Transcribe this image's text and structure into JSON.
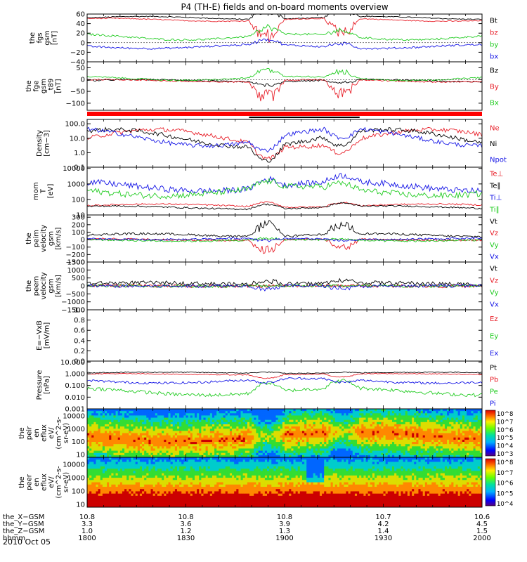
{
  "title": "P4 (TH-E) fields and on-board moments overview",
  "date_label": "2010 Oct 05",
  "colors": {
    "black": "#000000",
    "red": "#e8202a",
    "green": "#22cc22",
    "blue": "#1515e6",
    "bar_red": "#ff0000"
  },
  "chart_data": [
    {
      "type": "line",
      "panel": "fgs",
      "ylabel": [
        "the",
        "fgs",
        "gsm",
        "[nT]"
      ],
      "ylim": [
        -40,
        60
      ],
      "yticks": [
        "60",
        "40",
        "20",
        "0",
        "−20",
        "−40"
      ],
      "ytick_values": [
        60,
        40,
        20,
        0,
        -20,
        -40
      ],
      "series": [
        {
          "name": "Bt",
          "color": "black",
          "base": 52,
          "amp": 3,
          "noise": 1,
          "dist": 20
        },
        {
          "name": "bz",
          "color": "red",
          "base": 48,
          "amp": 3,
          "noise": 1,
          "dist": -35
        },
        {
          "name": "by",
          "color": "green",
          "base": 12,
          "amp": 6,
          "noise": 2,
          "dist": 15
        },
        {
          "name": "bx",
          "color": "blue",
          "base": -8,
          "amp": 4,
          "noise": 2,
          "dist": 10
        }
      ]
    },
    {
      "type": "line",
      "panel": "fge",
      "ylabel": [
        "the",
        "fge",
        "gsm",
        "_t89",
        "[nT]"
      ],
      "ylim": [
        -130,
        75
      ],
      "yticks": [
        "50",
        "0",
        "−50",
        "−100"
      ],
      "ytick_values": [
        50,
        0,
        -50,
        -100
      ],
      "series": [
        {
          "name": "Bz",
          "color": "black",
          "base": -5,
          "amp": 5,
          "noise": 3,
          "dist": -15
        },
        {
          "name": "By",
          "color": "red",
          "base": -5,
          "amp": 5,
          "noise": 3,
          "dist": -70
        },
        {
          "name": "Bx",
          "color": "green",
          "base": 5,
          "amp": 8,
          "noise": 3,
          "dist": 30
        }
      ]
    },
    {
      "type": "line",
      "panel": "density",
      "log": true,
      "ylabel": [
        "Density",
        "[cm−3]"
      ],
      "ylim": [
        0.1,
        200
      ],
      "yticks": [
        "100.0",
        "10.0",
        "1.0",
        "0.1"
      ],
      "ytick_values": [
        100,
        10,
        1,
        0.1
      ],
      "series": [
        {
          "name": "Ne",
          "color": "red",
          "base": 10,
          "amp": 0.6,
          "noise": 0.15,
          "dist": -0.9
        },
        {
          "name": "Ni",
          "color": "black",
          "base": 10,
          "amp": 0.6,
          "noise": 0.15,
          "dist": -1.0
        },
        {
          "name": "Npot",
          "color": "blue",
          "base": 12,
          "amp": 0.6,
          "noise": 0.15,
          "dist": -0.8
        }
      ]
    },
    {
      "type": "line",
      "panel": "temperature",
      "log": true,
      "ylabel": [
        "mom",
        "T",
        "[eV]"
      ],
      "ylim": [
        10,
        12000
      ],
      "yticks": [
        "10000",
        "1000",
        "100",
        "10"
      ],
      "ytick_values": [
        10000,
        1000,
        100,
        10
      ],
      "series": [
        {
          "name": "Te⊥",
          "color": "red",
          "base": 40,
          "amp": 0.1,
          "noise": 0.05,
          "dist": 0.3
        },
        {
          "name": "Te∥",
          "color": "black",
          "base": 30,
          "amp": 0.1,
          "noise": 0.05,
          "dist": 0.3
        },
        {
          "name": "Ti⊥",
          "color": "blue",
          "base": 700,
          "amp": 0.3,
          "noise": 0.2,
          "dist": 0.5
        },
        {
          "name": "Ti∥",
          "color": "green",
          "base": 350,
          "amp": 0.3,
          "noise": 0.2,
          "dist": 0.4
        }
      ]
    },
    {
      "type": "line",
      "panel": "peim",
      "ylabel": [
        "the",
        "peim",
        "velocity",
        "gsm",
        "[km/s]"
      ],
      "ylim": [
        -300,
        330
      ],
      "yticks": [
        "300",
        "200",
        "100",
        "0",
        "−100",
        "−200",
        "−300"
      ],
      "ytick_values": [
        300,
        200,
        100,
        0,
        -100,
        -200,
        -300
      ],
      "series": [
        {
          "name": "Vt",
          "color": "black",
          "base": 60,
          "amp": 20,
          "noise": 15,
          "dist": 150
        },
        {
          "name": "Vz",
          "color": "red",
          "base": 0,
          "amp": 10,
          "noise": 12,
          "dist": -150
        },
        {
          "name": "Vy",
          "color": "green",
          "base": -10,
          "amp": 10,
          "noise": 12,
          "dist": 20
        },
        {
          "name": "Vx",
          "color": "blue",
          "base": 10,
          "amp": 10,
          "noise": 12,
          "dist": -30
        }
      ]
    },
    {
      "type": "line",
      "panel": "peem",
      "ylabel": [
        "the",
        "peem",
        "velocity",
        "gsm",
        "[km/s]"
      ],
      "ylim": [
        -1500,
        1500
      ],
      "yticks": [
        "1500",
        "1000",
        "500",
        "0",
        "−500",
        "−1000",
        "−1500"
      ],
      "ytick_values": [
        1500,
        1000,
        500,
        0,
        -500,
        -1000,
        -1500
      ],
      "series": [
        {
          "name": "Vt",
          "color": "black",
          "base": 150,
          "amp": 50,
          "noise": 120,
          "dist": 200
        },
        {
          "name": "Vz",
          "color": "red",
          "base": 0,
          "amp": 20,
          "noise": 100,
          "dist": 0
        },
        {
          "name": "Vy",
          "color": "green",
          "base": 0,
          "amp": 20,
          "noise": 100,
          "dist": 0
        },
        {
          "name": "Vx",
          "color": "blue",
          "base": 0,
          "amp": 20,
          "noise": 100,
          "dist": -200
        }
      ]
    },
    {
      "type": "line",
      "panel": "efield",
      "ylabel": [
        "E=−VxB",
        "[mV/m]"
      ],
      "ylim": [
        0,
        1
      ],
      "yticks": [
        "1.0",
        "0.8",
        "0.6",
        "0.4",
        "0.2",
        "0.0"
      ],
      "ytick_values": [
        1.0,
        0.8,
        0.6,
        0.4,
        0.2,
        0.0
      ],
      "series": [
        {
          "name": "Ez",
          "color": "red",
          "empty": true
        },
        {
          "name": "Ey",
          "color": "green",
          "empty": true
        },
        {
          "name": "Ex",
          "color": "blue",
          "empty": true
        }
      ]
    },
    {
      "type": "line",
      "panel": "pressure",
      "log": true,
      "ylabel": [
        "Pressure",
        "[nPa]"
      ],
      "ylim": [
        0.001,
        12
      ],
      "yticks": [
        "10.000",
        "1.000",
        "0.100",
        "0.010",
        "0.001"
      ],
      "ytick_values": [
        10,
        1,
        0.1,
        0.01,
        0.001
      ],
      "series": [
        {
          "name": "Pt",
          "color": "black",
          "base": 1.2,
          "amp": 0.05,
          "noise": 0.04,
          "dist": 0.1
        },
        {
          "name": "Pb",
          "color": "red",
          "base": 0.9,
          "amp": 0.05,
          "noise": 0.04,
          "dist": -0.3
        },
        {
          "name": "Pe",
          "color": "green",
          "base": 0.03,
          "amp": 0.3,
          "noise": 0.15,
          "dist": 0.8
        },
        {
          "name": "Pi",
          "color": "blue",
          "base": 0.25,
          "amp": 0.2,
          "noise": 0.1,
          "dist": -0.3
        }
      ]
    },
    {
      "type": "heatmap",
      "panel": "peir_spec",
      "ylabel": [
        "the",
        "peir",
        "en",
        "eflux",
        "eV/",
        "(cm^2-s-",
        "sr-eV)"
      ],
      "yticks": [
        "10000",
        "1000",
        "100",
        "10"
      ],
      "colorbar_ticks": [
        "10^8",
        "10^7",
        "10^6",
        "10^5",
        "10^4",
        "10^3"
      ]
    },
    {
      "type": "heatmap",
      "panel": "peer_spec",
      "ylabel": [
        "the",
        "peer",
        "en",
        "eflux",
        "eV/",
        "(cm^2-s-",
        "sr-eV)"
      ],
      "yticks": [
        "10000",
        "1000",
        "100",
        "10"
      ],
      "colorbar_ticks": [
        "10^8",
        "10^7",
        "10^6",
        "10^5",
        "10^4"
      ]
    }
  ],
  "x_axis": {
    "row_labels": [
      "the_X−GSM",
      "the_Y−GSM",
      "the_Z−GSM",
      "hhmm"
    ],
    "columns": [
      [
        "10.8",
        "3.3",
        "1.0",
        "1800"
      ],
      [
        "10.8",
        "3.6",
        "1.2",
        "1830"
      ],
      [
        "10.8",
        "3.9",
        "1.3",
        "1900"
      ],
      [
        "10.7",
        "4.2",
        "1.4",
        "1930"
      ],
      [
        "10.6",
        "4.5",
        "1.5",
        "2000"
      ]
    ]
  }
}
